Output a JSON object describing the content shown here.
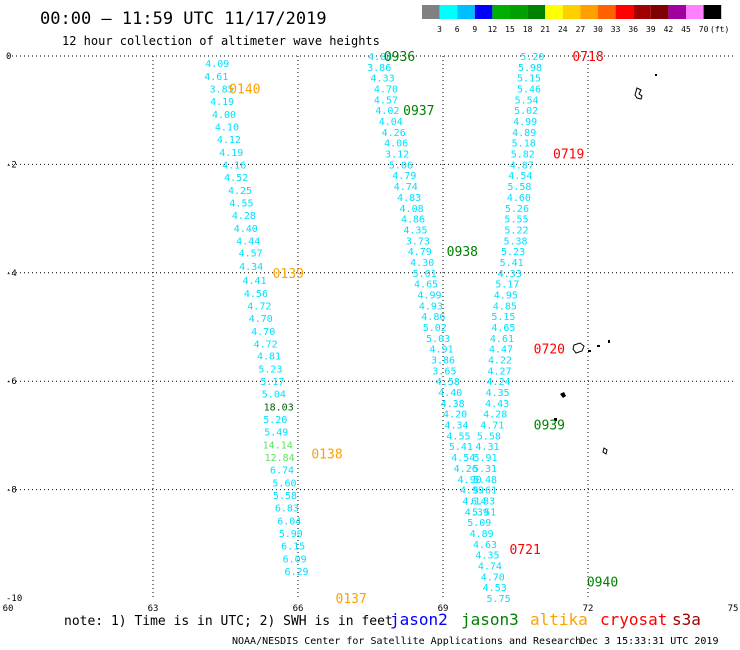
{
  "header": {
    "title": "00:00 – 11:59 UTC 11/17/2019",
    "subtitle": "12 hour collection of altimeter wave heights"
  },
  "colorbar": {
    "labels": [
      "3",
      "6",
      "9",
      "12",
      "15",
      "18",
      "21",
      "24",
      "27",
      "30",
      "33",
      "36",
      "39",
      "42",
      "45",
      "70"
    ],
    "colors": [
      "#808080",
      "#00ffff",
      "#00bfff",
      "#0000ff",
      "#00b000",
      "#00a000",
      "#008000",
      "#ffff00",
      "#ffd000",
      "#ffa000",
      "#ff6000",
      "#ff0000",
      "#a00000",
      "#800000",
      "#a000a0",
      "#ff80ff",
      "#000000"
    ],
    "unit": "(ft)"
  },
  "footer": {
    "note": "note: 1) Time is in UTC; 2) SWH is in feet",
    "satellites": [
      {
        "name": "jason2",
        "color": "#0000ff"
      },
      {
        "name": "jason3",
        "color": "#008000"
      },
      {
        "name": "altika",
        "color": "#ffa000"
      },
      {
        "name": "cryosat",
        "color": "#ff0000"
      },
      {
        "name": "s3a",
        "color": "#a00000"
      }
    ],
    "credit": "NOAA/NESDIS Center for Satellite Applications and Research",
    "timestamp": "Dec  3 15:33:31 UTC 2019"
  },
  "chart_data": {
    "type": "scatter",
    "title": "00:00 – 11:59 UTC 11/17/2019",
    "subtitle": "12 hour collection of altimeter wave heights",
    "xlim": [
      60,
      75
    ],
    "ylim": [
      -10,
      0
    ],
    "xticks": [
      60,
      63,
      66,
      69,
      72,
      75
    ],
    "yticks": [
      0,
      -2,
      -4,
      -6,
      -8,
      -10
    ],
    "grid": true,
    "legend": "bottom",
    "series": [
      {
        "name": "altika",
        "color": "#00e0ff",
        "points": [
          {
            "x": 64.33,
            "y": -0.13,
            "v": "4.09"
          },
          {
            "x": 64.31,
            "y": -0.37,
            "v": "4.61"
          },
          {
            "x": 64.42,
            "y": -0.6,
            "v": "3.85"
          },
          {
            "x": 64.43,
            "y": -0.83,
            "v": "4.19"
          },
          {
            "x": 64.47,
            "y": -1.07,
            "v": "4.00"
          },
          {
            "x": 64.53,
            "y": -1.3,
            "v": "4.10"
          },
          {
            "x": 64.57,
            "y": -1.53,
            "v": "4.12"
          },
          {
            "x": 64.62,
            "y": -1.77,
            "v": "4.19"
          },
          {
            "x": 64.68,
            "y": -2.0,
            "v": "4.16"
          },
          {
            "x": 64.72,
            "y": -2.23,
            "v": "4.52"
          },
          {
            "x": 64.8,
            "y": -2.47,
            "v": "4.25"
          },
          {
            "x": 64.83,
            "y": -2.7,
            "v": "4.55"
          },
          {
            "x": 64.88,
            "y": -2.93,
            "v": "4.28"
          },
          {
            "x": 64.92,
            "y": -3.17,
            "v": "4.40"
          },
          {
            "x": 64.97,
            "y": -3.4,
            "v": "4.44"
          },
          {
            "x": 65.02,
            "y": -3.63,
            "v": "4.57"
          },
          {
            "x": 65.03,
            "y": -3.87,
            "v": "4.34"
          },
          {
            "x": 65.1,
            "y": -4.13,
            "v": "4.41"
          },
          {
            "x": 65.13,
            "y": -4.37,
            "v": "4.56"
          },
          {
            "x": 65.2,
            "y": -4.6,
            "v": "4.72"
          },
          {
            "x": 65.23,
            "y": -4.83,
            "v": "4.70"
          },
          {
            "x": 65.28,
            "y": -5.07,
            "v": "4.70"
          },
          {
            "x": 65.33,
            "y": -5.3,
            "v": "4.72"
          },
          {
            "x": 65.4,
            "y": -5.53,
            "v": "4.81"
          },
          {
            "x": 65.43,
            "y": -5.77,
            "v": "5.23"
          },
          {
            "x": 65.47,
            "y": -6.0,
            "v": "5.17"
          },
          {
            "x": 65.5,
            "y": -6.23,
            "v": "5.04"
          },
          {
            "x": 65.53,
            "y": -6.7,
            "v": "5.20"
          },
          {
            "x": 65.55,
            "y": -6.93,
            "v": "5.49"
          },
          {
            "x": 65.67,
            "y": -7.63,
            "v": "6.74"
          },
          {
            "x": 65.72,
            "y": -7.87,
            "v": "5.60"
          },
          {
            "x": 65.73,
            "y": -8.1,
            "v": "5.58"
          },
          {
            "x": 65.77,
            "y": -8.33,
            "v": "6.83"
          },
          {
            "x": 65.82,
            "y": -8.57,
            "v": "6.04"
          },
          {
            "x": 65.85,
            "y": -8.8,
            "v": "5.90"
          },
          {
            "x": 65.9,
            "y": -9.03,
            "v": "6.15"
          },
          {
            "x": 65.93,
            "y": -9.27,
            "v": "6.09"
          },
          {
            "x": 65.97,
            "y": -9.5,
            "v": "6.29"
          }
        ]
      },
      {
        "name": "jason3",
        "color": "#00e0ff",
        "points": [
          {
            "x": 67.7,
            "y": 0.0,
            "v": "4.88"
          },
          {
            "x": 67.68,
            "y": -0.2,
            "v": "3.86"
          },
          {
            "x": 67.75,
            "y": -0.4,
            "v": "4.33"
          },
          {
            "x": 67.82,
            "y": -0.6,
            "v": "4.70"
          },
          {
            "x": 67.82,
            "y": -0.8,
            "v": "4.57"
          },
          {
            "x": 67.85,
            "y": -1.0,
            "v": "4.02"
          },
          {
            "x": 67.92,
            "y": -1.2,
            "v": "4.04"
          },
          {
            "x": 67.98,
            "y": -1.4,
            "v": "4.26"
          },
          {
            "x": 68.03,
            "y": -1.6,
            "v": "4.06"
          },
          {
            "x": 68.05,
            "y": -1.8,
            "v": "3.12"
          },
          {
            "x": 68.13,
            "y": -2.0,
            "v": "5.06"
          },
          {
            "x": 68.2,
            "y": -2.2,
            "v": "4.79"
          },
          {
            "x": 68.23,
            "y": -2.4,
            "v": "4.74"
          },
          {
            "x": 68.3,
            "y": -2.6,
            "v": "4.83"
          },
          {
            "x": 68.35,
            "y": -2.8,
            "v": "4.08"
          },
          {
            "x": 68.38,
            "y": -3.0,
            "v": "4.86"
          },
          {
            "x": 68.43,
            "y": -3.2,
            "v": "4.35"
          },
          {
            "x": 68.48,
            "y": -3.4,
            "v": "3.73"
          },
          {
            "x": 68.52,
            "y": -3.6,
            "v": "4.79"
          },
          {
            "x": 68.57,
            "y": -3.8,
            "v": "4.30"
          },
          {
            "x": 68.62,
            "y": -4.0,
            "v": "5.01"
          },
          {
            "x": 68.65,
            "y": -4.2,
            "v": "4.65"
          },
          {
            "x": 68.72,
            "y": -4.4,
            "v": "4.99"
          },
          {
            "x": 68.75,
            "y": -4.6,
            "v": "4.93"
          },
          {
            "x": 68.8,
            "y": -4.8,
            "v": "4.86"
          },
          {
            "x": 68.83,
            "y": -5.0,
            "v": "5.02"
          },
          {
            "x": 68.9,
            "y": -5.2,
            "v": "5.03"
          },
          {
            "x": 68.97,
            "y": -5.4,
            "v": "4.91"
          },
          {
            "x": 69.0,
            "y": -5.6,
            "v": "3.86"
          },
          {
            "x": 69.03,
            "y": -5.8,
            "v": "3.65"
          },
          {
            "x": 69.1,
            "y": -6.0,
            "v": "4.58"
          },
          {
            "x": 69.15,
            "y": -6.2,
            "v": "4.40"
          },
          {
            "x": 69.2,
            "y": -6.4,
            "v": "4.38"
          },
          {
            "x": 69.25,
            "y": -6.6,
            "v": "4.20"
          },
          {
            "x": 69.28,
            "y": -6.8,
            "v": "4.34"
          },
          {
            "x": 69.32,
            "y": -7.0,
            "v": "4.55"
          },
          {
            "x": 69.37,
            "y": -7.2,
            "v": "5.41"
          },
          {
            "x": 69.42,
            "y": -7.4,
            "v": "4.54"
          },
          {
            "x": 69.47,
            "y": -7.6,
            "v": "4.26"
          },
          {
            "x": 69.55,
            "y": -7.8,
            "v": "4.90"
          },
          {
            "x": 69.6,
            "y": -8.0,
            "v": "4.99"
          },
          {
            "x": 69.65,
            "y": -8.2,
            "v": "4.14"
          },
          {
            "x": 69.7,
            "y": -8.4,
            "v": "4.39"
          },
          {
            "x": 69.75,
            "y": -8.6,
            "v": "5.09"
          },
          {
            "x": 69.8,
            "y": -8.8,
            "v": "4.89"
          },
          {
            "x": 69.87,
            "y": -9.0,
            "v": "4.63"
          },
          {
            "x": 69.92,
            "y": -9.2,
            "v": "4.35"
          },
          {
            "x": 69.97,
            "y": -9.4,
            "v": "4.74"
          },
          {
            "x": 70.03,
            "y": -9.6,
            "v": "4.70"
          },
          {
            "x": 70.07,
            "y": -9.8,
            "v": "4.53"
          },
          {
            "x": 70.15,
            "y": -10.0,
            "v": "5.75"
          }
        ]
      },
      {
        "name": "cryosat",
        "color": "#00e0ff",
        "points": [
          {
            "x": 70.85,
            "y": 0.0,
            "v": "5.20"
          },
          {
            "x": 70.8,
            "y": -0.2,
            "v": "5.98"
          },
          {
            "x": 70.78,
            "y": -0.4,
            "v": "5.15"
          },
          {
            "x": 70.78,
            "y": -0.6,
            "v": "5.46"
          },
          {
            "x": 70.73,
            "y": -0.8,
            "v": "5.54"
          },
          {
            "x": 70.72,
            "y": -1.0,
            "v": "5.02"
          },
          {
            "x": 70.7,
            "y": -1.2,
            "v": "4.99"
          },
          {
            "x": 70.68,
            "y": -1.4,
            "v": "4.89"
          },
          {
            "x": 70.67,
            "y": -1.6,
            "v": "5.18"
          },
          {
            "x": 70.65,
            "y": -1.8,
            "v": "5.82"
          },
          {
            "x": 70.63,
            "y": -2.0,
            "v": "4.87"
          },
          {
            "x": 70.6,
            "y": -2.2,
            "v": "4.54"
          },
          {
            "x": 70.58,
            "y": -2.4,
            "v": "5.58"
          },
          {
            "x": 70.57,
            "y": -2.6,
            "v": "4.60"
          },
          {
            "x": 70.53,
            "y": -2.8,
            "v": "5.26"
          },
          {
            "x": 70.52,
            "y": -3.0,
            "v": "5.55"
          },
          {
            "x": 70.52,
            "y": -3.2,
            "v": "5.22"
          },
          {
            "x": 70.5,
            "y": -3.4,
            "v": "5.38"
          },
          {
            "x": 70.45,
            "y": -3.6,
            "v": "5.23"
          },
          {
            "x": 70.42,
            "y": -3.8,
            "v": "5.41"
          },
          {
            "x": 70.38,
            "y": -4.0,
            "v": "4.33"
          },
          {
            "x": 70.33,
            "y": -4.2,
            "v": "5.17"
          },
          {
            "x": 70.3,
            "y": -4.4,
            "v": "4.95"
          },
          {
            "x": 70.28,
            "y": -4.6,
            "v": "4.85"
          },
          {
            "x": 70.25,
            "y": -4.8,
            "v": "5.15"
          },
          {
            "x": 70.25,
            "y": -5.0,
            "v": "4.65"
          },
          {
            "x": 70.22,
            "y": -5.2,
            "v": "4.61"
          },
          {
            "x": 70.2,
            "y": -5.4,
            "v": "4.47"
          },
          {
            "x": 70.18,
            "y": -5.6,
            "v": "4.22"
          },
          {
            "x": 70.17,
            "y": -5.8,
            "v": "4.27"
          },
          {
            "x": 70.15,
            "y": -6.0,
            "v": "4.24"
          },
          {
            "x": 70.13,
            "y": -6.2,
            "v": "4.35"
          },
          {
            "x": 70.12,
            "y": -6.4,
            "v": "4.43"
          },
          {
            "x": 70.08,
            "y": -6.6,
            "v": "4.28"
          },
          {
            "x": 70.02,
            "y": -6.8,
            "v": "4.71"
          },
          {
            "x": 69.95,
            "y": -7.0,
            "v": "5.58"
          },
          {
            "x": 69.92,
            "y": -7.2,
            "v": "4.31"
          },
          {
            "x": 69.88,
            "y": -7.4,
            "v": "5.91"
          },
          {
            "x": 69.87,
            "y": -7.6,
            "v": "5.31"
          },
          {
            "x": 69.87,
            "y": -7.8,
            "v": "5.48"
          },
          {
            "x": 69.87,
            "y": -8.0,
            "v": "5.61"
          },
          {
            "x": 69.83,
            "y": -8.2,
            "v": "6.33"
          },
          {
            "x": 69.85,
            "y": -8.4,
            "v": "5.51"
          }
        ]
      }
    ],
    "highlight_points": [
      {
        "x": 65.6,
        "y": -6.47,
        "v": "18.03",
        "color": "#006000"
      },
      {
        "x": 65.58,
        "y": -7.17,
        "v": "14.14",
        "color": "#60e060"
      },
      {
        "x": 65.62,
        "y": -7.4,
        "v": "12.84",
        "color": "#60e060"
      }
    ],
    "time_markers": [
      {
        "x": 64.9,
        "y": -0.6,
        "label": "0140",
        "color": "#ffa000"
      },
      {
        "x": 65.8,
        "y": -4.0,
        "label": "0139",
        "color": "#ffa000"
      },
      {
        "x": 66.6,
        "y": -7.33,
        "label": "0138",
        "color": "#ffa000"
      },
      {
        "x": 67.1,
        "y": -10.0,
        "label": "0137",
        "color": "#ffa000"
      },
      {
        "x": 68.1,
        "y": 0.0,
        "label": "0936",
        "color": "#008000"
      },
      {
        "x": 68.5,
        "y": -1.0,
        "label": "0937",
        "color": "#008000"
      },
      {
        "x": 69.4,
        "y": -3.6,
        "label": "0938",
        "color": "#008000"
      },
      {
        "x": 71.2,
        "y": -6.8,
        "label": "0939",
        "color": "#008000"
      },
      {
        "x": 72.3,
        "y": -9.7,
        "label": "0940",
        "color": "#008000"
      },
      {
        "x": 72.0,
        "y": 0.0,
        "label": "0718",
        "color": "#ff0000"
      },
      {
        "x": 71.6,
        "y": -1.8,
        "label": "0719",
        "color": "#ff0000"
      },
      {
        "x": 71.2,
        "y": -5.4,
        "label": "0720",
        "color": "#ff0000"
      },
      {
        "x": 70.7,
        "y": -9.1,
        "label": "0721",
        "color": "#ff0000"
      }
    ]
  }
}
